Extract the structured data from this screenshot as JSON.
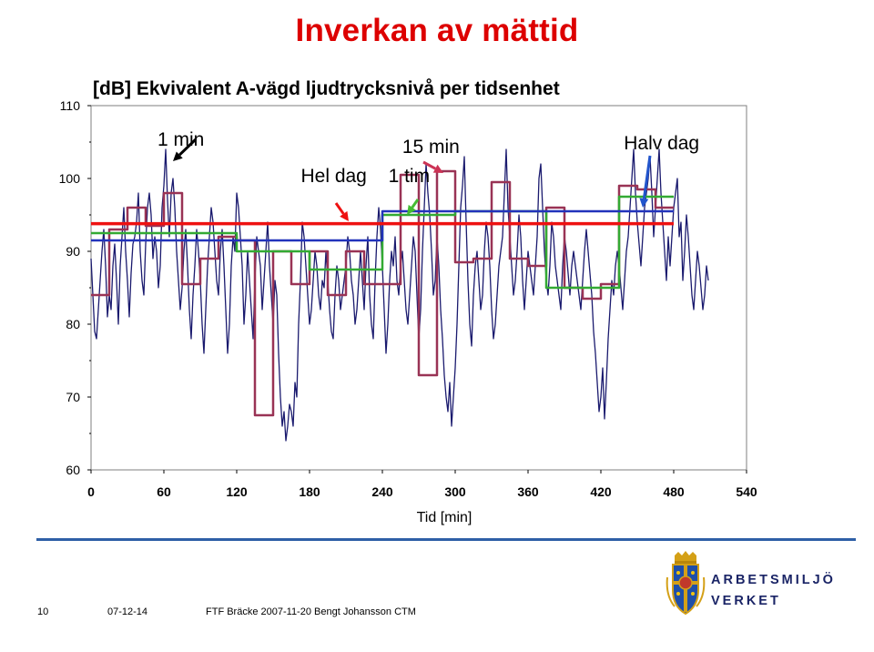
{
  "slide_title": "Inverkan av mättid",
  "chart_data": {
    "type": "line",
    "title": "[dB]  Ekvivalent A-vägd ljudtrycksnivå per tidsenhet",
    "xlabel": "Tid [min]",
    "ylabel": "",
    "xlim": [
      0,
      540
    ],
    "ylim": [
      60,
      110
    ],
    "xticks": [
      0,
      60,
      120,
      180,
      240,
      300,
      360,
      420,
      480,
      540
    ],
    "yticks": [
      60,
      70,
      80,
      90,
      100,
      110
    ],
    "grid": false,
    "legend": "none",
    "annotations": [
      {
        "text": "1 min",
        "color": "#000000",
        "x": 74,
        "y": 104.5
      },
      {
        "text": "15 min",
        "color": "#cc3355",
        "x": 280,
        "y": 103.5
      },
      {
        "text": "Halv dag",
        "color": "#2255cc",
        "x": 470,
        "y": 104
      },
      {
        "text": "Hel dag",
        "color": "#ee1111",
        "x": 200,
        "y": 99.5
      },
      {
        "text": "1 tim",
        "color": "#44bb33",
        "x": 262,
        "y": 99.5
      }
    ],
    "series": [
      {
        "color": "#1a1a6e",
        "width": 1.3,
        "step": 1.5,
        "values": [
          89,
          84,
          79,
          78,
          82,
          86,
          90,
          93,
          88,
          81,
          84,
          82,
          88,
          91,
          86,
          80,
          88,
          92,
          96,
          90,
          86,
          81,
          87,
          91,
          92,
          94,
          98,
          90,
          86,
          84,
          91,
          96,
          98,
          95,
          89,
          92,
          90,
          85,
          88,
          96,
          99,
          104,
          97,
          92,
          98,
          100,
          96,
          90,
          86,
          82,
          85,
          90,
          93,
          88,
          82,
          78,
          84,
          88,
          93,
          90,
          86,
          80,
          76,
          82,
          88,
          92,
          96,
          94,
          90,
          86,
          84,
          90,
          93,
          88,
          82,
          76,
          80,
          88,
          92,
          90,
          98,
          96,
          92,
          88,
          80,
          84,
          90,
          86,
          82,
          78,
          86,
          92,
          90,
          88,
          82,
          86,
          90,
          94,
          88,
          84,
          80,
          86,
          84,
          76,
          70,
          66,
          68,
          64,
          66,
          69,
          68,
          66,
          72,
          70,
          80,
          86,
          94,
          92,
          88,
          84,
          80,
          82,
          86,
          90,
          88,
          84,
          82,
          86,
          85,
          90,
          86,
          82,
          79,
          78,
          84,
          88,
          86,
          82,
          84,
          86,
          88,
          92,
          90,
          86,
          84,
          80,
          82,
          86,
          90,
          86,
          82,
          88,
          92,
          84,
          80,
          78,
          86,
          92,
          96,
          93,
          88,
          82,
          76,
          80,
          86,
          90,
          88,
          92,
          86,
          84,
          88,
          90,
          86,
          82,
          80,
          84,
          88,
          92,
          90,
          84,
          78,
          82,
          90,
          96,
          102,
          98,
          95,
          90,
          84,
          86,
          92,
          88,
          82,
          78,
          73,
          70,
          68,
          72,
          66,
          70,
          74,
          80,
          88,
          96,
          99,
          103,
          94,
          86,
          80,
          77,
          84,
          88,
          90,
          86,
          82,
          84,
          90,
          94,
          92,
          88,
          82,
          78,
          80,
          84,
          88,
          90,
          92,
          98,
          104,
          96,
          92,
          88,
          84,
          86,
          90,
          95,
          92,
          86,
          82,
          86,
          90,
          88,
          86,
          84,
          88,
          92,
          100,
          102,
          96,
          90,
          86,
          84,
          88,
          94,
          92,
          88,
          86,
          84,
          82,
          88,
          92,
          90,
          87,
          84,
          88,
          90,
          88,
          86,
          84,
          82,
          86,
          90,
          93,
          90,
          87,
          84,
          79,
          76,
          72,
          68,
          70,
          74,
          67,
          72,
          78,
          82,
          86,
          84,
          88,
          90,
          88,
          85,
          82,
          86,
          90,
          92,
          96,
          100,
          104,
          98,
          94,
          91,
          88,
          92,
          96,
          98,
          100,
          103,
          98,
          92,
          96,
          100,
          104,
          98,
          94,
          90,
          86,
          92,
          88,
          92,
          96,
          98,
          100,
          92,
          94,
          86,
          90,
          95,
          92,
          88,
          84,
          82,
          86,
          90,
          88,
          85,
          82,
          84,
          88,
          86
        ]
      },
      {
        "color": "#993355",
        "width": 2.5,
        "points": [
          [
            0,
            84
          ],
          [
            15,
            84
          ],
          [
            15,
            93
          ],
          [
            30,
            93
          ],
          [
            30,
            96
          ],
          [
            45,
            96
          ],
          [
            45,
            93.5
          ],
          [
            60,
            93.5
          ],
          [
            60,
            98
          ],
          [
            75,
            98
          ],
          [
            75,
            85.5
          ],
          [
            90,
            85.5
          ],
          [
            90,
            89
          ],
          [
            105,
            89
          ],
          [
            105,
            92
          ],
          [
            120,
            92
          ],
          [
            120,
            91.5
          ],
          [
            135,
            91.5
          ],
          [
            135,
            67.5
          ],
          [
            150,
            67.5
          ],
          [
            150,
            90
          ],
          [
            165,
            90
          ],
          [
            165,
            85.5
          ],
          [
            180,
            85.5
          ],
          [
            180,
            90
          ],
          [
            195,
            90
          ],
          [
            195,
            84
          ],
          [
            210,
            84
          ],
          [
            210,
            90
          ],
          [
            225,
            90
          ],
          [
            225,
            85.5
          ],
          [
            240,
            85.5
          ],
          [
            240,
            85.5
          ],
          [
            255,
            85.5
          ],
          [
            255,
            100.5
          ],
          [
            270,
            100.5
          ],
          [
            270,
            73
          ],
          [
            285,
            73
          ],
          [
            285,
            101
          ],
          [
            300,
            101
          ],
          [
            300,
            88.5
          ],
          [
            315,
            88.5
          ],
          [
            315,
            89
          ],
          [
            330,
            89
          ],
          [
            330,
            99.5
          ],
          [
            345,
            99.5
          ],
          [
            345,
            89
          ],
          [
            360,
            89
          ],
          [
            360,
            88
          ],
          [
            375,
            88
          ],
          [
            375,
            96
          ],
          [
            390,
            96
          ],
          [
            390,
            85
          ],
          [
            405,
            85
          ],
          [
            405,
            83.5
          ],
          [
            420,
            83.5
          ],
          [
            420,
            85.5
          ],
          [
            435,
            85.5
          ],
          [
            435,
            99
          ],
          [
            450,
            99
          ],
          [
            450,
            98.5
          ],
          [
            465,
            98.5
          ],
          [
            465,
            96
          ],
          [
            480,
            96
          ]
        ]
      },
      {
        "color": "#33aa33",
        "width": 2.5,
        "points": [
          [
            0,
            92.5
          ],
          [
            60,
            92.5
          ],
          [
            60,
            92.5
          ],
          [
            120,
            92.5
          ],
          [
            120,
            90
          ],
          [
            180,
            90
          ],
          [
            180,
            87.5
          ],
          [
            240,
            87.5
          ],
          [
            240,
            95
          ],
          [
            300,
            95
          ],
          [
            300,
            95.5
          ],
          [
            360,
            95.5
          ],
          [
            360,
            95.5
          ],
          [
            375,
            95.5
          ],
          [
            375,
            85
          ],
          [
            435,
            85
          ],
          [
            435,
            97.5
          ],
          [
            480,
            97.5
          ]
        ]
      },
      {
        "color": "#2233bb",
        "width": 2.5,
        "points": [
          [
            0,
            91.5
          ],
          [
            240,
            91.5
          ],
          [
            240,
            95.5
          ],
          [
            480,
            95.5
          ]
        ]
      },
      {
        "color": "#ee1111",
        "width": 3.5,
        "points": [
          [
            0,
            93.8
          ],
          [
            480,
            93.8
          ]
        ]
      }
    ]
  },
  "footer": {
    "page_number": "10",
    "date": "07-12-14",
    "presenter": "FTF Bräcke 2007-11-20  Bengt Johansson CTM"
  },
  "logo": {
    "line1": "ARBETSMILJÖ",
    "line2": "VERKET"
  }
}
